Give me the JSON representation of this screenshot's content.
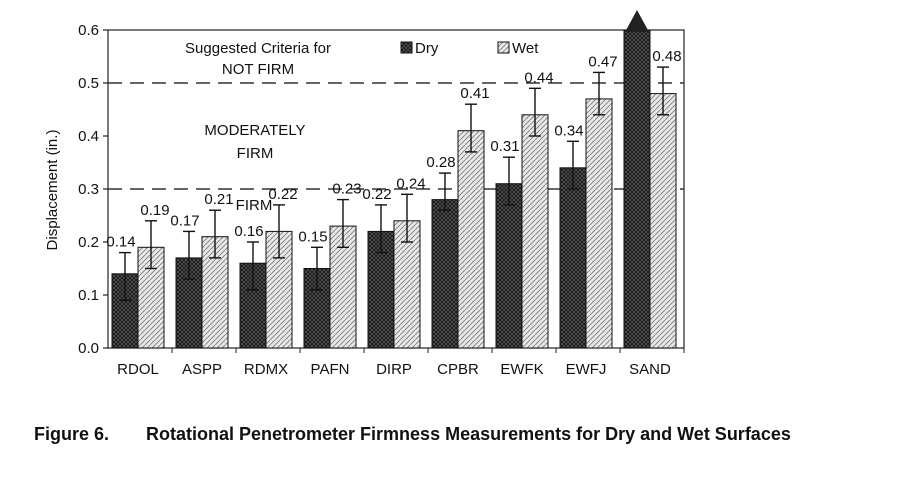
{
  "chart_data": {
    "type": "bar",
    "ylabel": "Displacement (in.)",
    "ylim": [
      0,
      0.6
    ],
    "yticks": [
      "0.0",
      "0.1",
      "0.2",
      "0.3",
      "0.4",
      "0.5",
      "0.6"
    ],
    "categories": [
      "RDOL",
      "ASPP",
      "RDMX",
      "PAFN",
      "DIRP",
      "CPBR",
      "EWFK",
      "EWFJ",
      "SAND"
    ],
    "series": [
      {
        "name": "Dry",
        "values": [
          0.14,
          0.17,
          0.16,
          0.15,
          0.22,
          0.28,
          0.31,
          0.34,
          0.6
        ],
        "labels": [
          "0.14",
          "0.17",
          "0.16",
          "0.15",
          "0.22",
          "0.28",
          "0.31",
          "0.34",
          ""
        ],
        "error_low": [
          0.09,
          0.13,
          0.11,
          0.11,
          0.18,
          0.26,
          0.27,
          0.3,
          null
        ],
        "error_high": [
          0.18,
          0.22,
          0.2,
          0.19,
          0.27,
          0.33,
          0.36,
          0.39,
          null
        ]
      },
      {
        "name": "Wet",
        "values": [
          0.19,
          0.21,
          0.22,
          0.23,
          0.24,
          0.41,
          0.44,
          0.47,
          0.48
        ],
        "labels": [
          "0.19",
          "0.21",
          "0.22",
          "0.23",
          "0.24",
          "0.41",
          "0.44",
          "0.47",
          "0.48"
        ],
        "error_low": [
          0.15,
          0.17,
          0.17,
          0.19,
          0.2,
          0.37,
          0.4,
          0.44,
          0.44
        ],
        "error_high": [
          0.24,
          0.26,
          0.27,
          0.28,
          0.29,
          0.46,
          0.49,
          0.52,
          0.53
        ]
      }
    ],
    "criteria_lines": [
      0.3,
      0.5
    ],
    "annotations": {
      "suggested_line1": "Suggested Criteria for",
      "suggested_line2": "NOT FIRM",
      "moderate_line1": "MODERATELY",
      "moderate_line2": "FIRM",
      "firm": "FIRM"
    },
    "legend_position": "top-right",
    "grid": false
  },
  "caption": {
    "number": "Figure 6.",
    "text": "Rotational Penetrometer Firmness Measurements for Dry and Wet Surfaces"
  }
}
